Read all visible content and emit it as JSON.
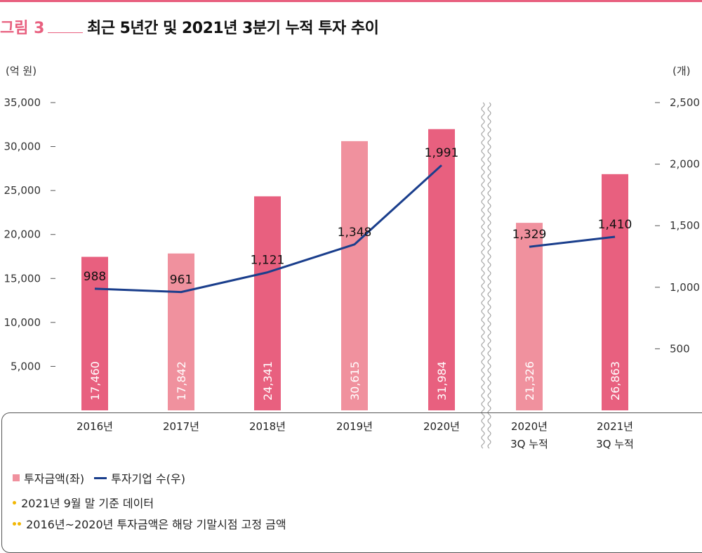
{
  "figure": {
    "label": "그림 3",
    "title": "최근 5년간 및 2021년 3분기 누적 투자 추이"
  },
  "colors": {
    "accent": "#e8607f",
    "bar_dark": "#e8607f",
    "bar_light": "#f0919e",
    "line": "#1a3e8c"
  },
  "chart_data": {
    "type": "bar",
    "categories": [
      "2016년",
      "2017년",
      "2018년",
      "2019년",
      "2020년",
      "2020년\n3Q 누적",
      "2021년\n3Q 누적"
    ],
    "series": [
      {
        "name": "투자금액(좌)",
        "type": "bar",
        "axis": "left",
        "values": [
          17460,
          17842,
          24341,
          30615,
          31984,
          21326,
          26863
        ],
        "labels": [
          "17,460",
          "17,842",
          "24,341",
          "30,615",
          "31,984",
          "21,326",
          "26,863"
        ],
        "shade": [
          "dark",
          "light",
          "dark",
          "light",
          "dark",
          "light",
          "dark"
        ]
      },
      {
        "name": "투자기업 수(우)",
        "type": "line",
        "axis": "right",
        "values": [
          988,
          961,
          1121,
          1348,
          1991,
          1329,
          1410
        ],
        "labels": [
          "988",
          "961",
          "1,121",
          "1,348",
          "1,991",
          "1,329",
          "1,410"
        ],
        "segments": [
          [
            0,
            4
          ],
          [
            5,
            6
          ]
        ]
      }
    ],
    "left_axis": {
      "unit": "(억 원)",
      "range": [
        0,
        35000
      ],
      "ticks": [
        5000,
        10000,
        15000,
        20000,
        25000,
        30000,
        35000
      ],
      "tick_labels": [
        "5,000",
        "10,000",
        "15,000",
        "20,000",
        "25,000",
        "30,000",
        "35,000"
      ]
    },
    "right_axis": {
      "unit": "(개)",
      "range": [
        0,
        2500
      ],
      "ticks": [
        500,
        1000,
        1500,
        2000,
        2500
      ],
      "tick_labels": [
        "500",
        "1,000",
        "1,500",
        "2,000",
        "2,500"
      ]
    },
    "axis_break": "between 2020년 and 2020년 3Q 누적",
    "legend": {
      "bar": "투자금액(좌)",
      "line": "투자기업 수(우)"
    }
  },
  "notes": [
    "2021년 9월 말 기준 데이터",
    "2016년~2020년 투자금액은 해당 기말시점 고정 금액"
  ]
}
